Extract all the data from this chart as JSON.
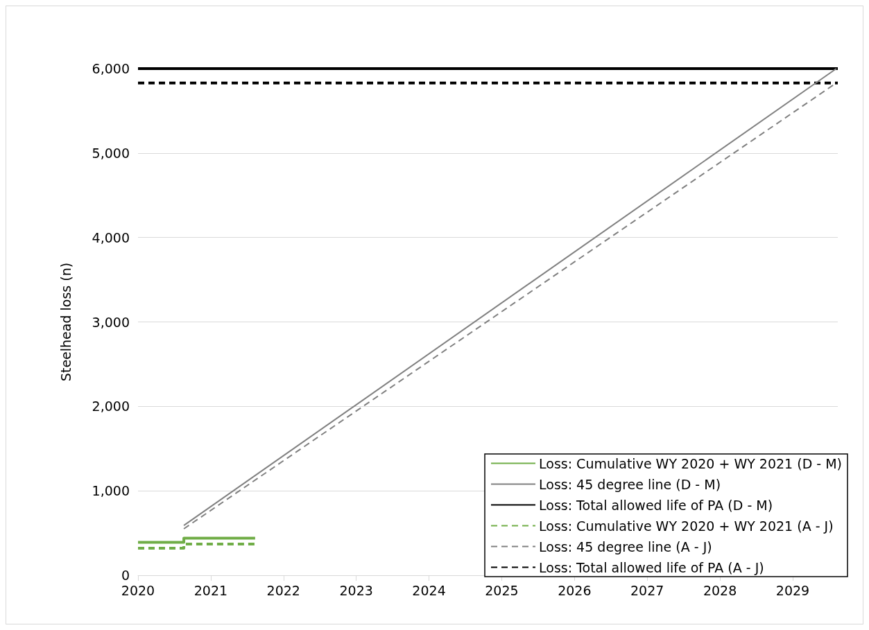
{
  "chart_data": {
    "type": "line",
    "ylabel": "Steelhead loss (n)",
    "xlim": [
      2020,
      2029.62
    ],
    "xticks": [
      2020,
      2021,
      2022,
      2023,
      2024,
      2025,
      2026,
      2027,
      2028,
      2029
    ],
    "ylim": [
      0,
      6000
    ],
    "yticks": [
      0,
      {
        "value": 1000,
        "label": "1,000"
      },
      {
        "value": 2000,
        "label": "2,000"
      },
      {
        "value": 3000,
        "label": "3,000"
      },
      {
        "value": 4000,
        "label": "4,000"
      },
      {
        "value": 5000,
        "label": "5,000"
      },
      {
        "value": 6000,
        "label": "6,000"
      }
    ],
    "grid": "y",
    "legend": "bottom right",
    "marker": "none",
    "series": [
      {
        "name": "Loss: Cumulative WY 2020 + WY 2021 (D - M)",
        "type": "step",
        "color": "#70ad47",
        "line_style": "solid",
        "x": [
          2020,
          2020.63,
          2021.61
        ],
        "values": [
          390,
          440,
          440
        ]
      },
      {
        "name": "Loss: 45 degree line (D - M)",
        "type": "line",
        "color": "#808080",
        "line_style": "solid",
        "x": [
          2020.63,
          2029.6
        ],
        "values": [
          590,
          6000
        ]
      },
      {
        "name": "Loss: Total allowed life of PA (D - M)",
        "type": "line",
        "color": "#000000",
        "line_style": "solid",
        "x": [
          2020,
          2029.62
        ],
        "values": [
          6000,
          6000
        ]
      },
      {
        "name": "Loss: Cumulative WY 2020 + WY 2021 (A - J)",
        "type": "step",
        "color": "#70ad47",
        "line_style": "dashed",
        "x": [
          2020,
          2020.63,
          2021.61
        ],
        "values": [
          320,
          370,
          370
        ]
      },
      {
        "name": "Loss: 45 degree line (A - J)",
        "type": "line",
        "color": "#808080",
        "line_style": "dashed",
        "x": [
          2020.63,
          2029.6
        ],
        "values": [
          550,
          5830
        ]
      },
      {
        "name": "Loss: Total allowed life of PA (A - J)",
        "type": "line",
        "color": "#000000",
        "line_style": "dashed",
        "x": [
          2020,
          2029.62
        ],
        "values": [
          5830,
          5830
        ]
      }
    ]
  }
}
